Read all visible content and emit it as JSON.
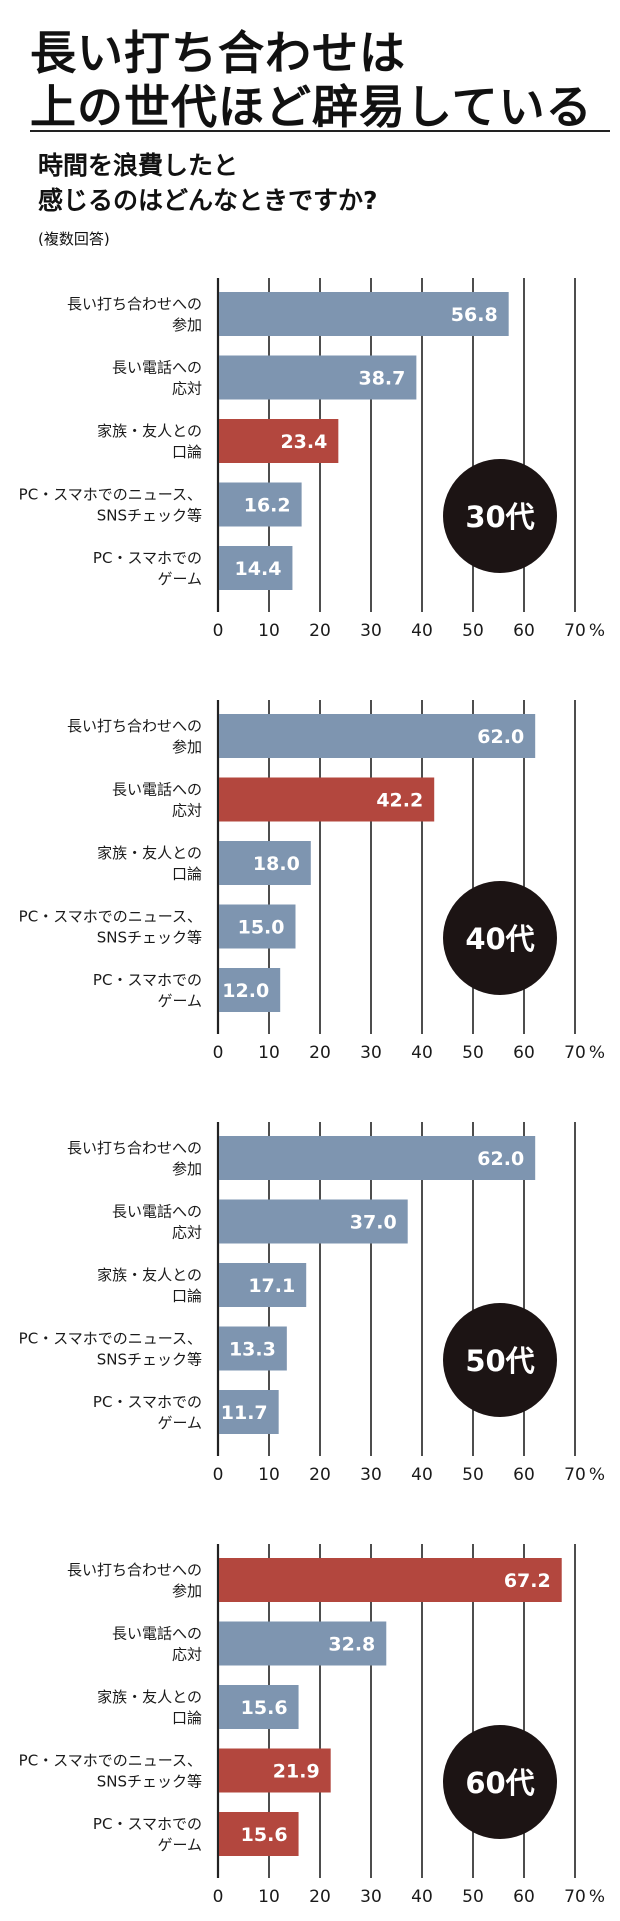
{
  "header": {
    "title_line1": "長い打ち合わせは",
    "title_line2": "上の世代ほど辟易している",
    "question_line1": "時間を浪費したと",
    "question_line2": "感じるのはどんなときですか?",
    "question_note": "(複数回答)"
  },
  "colors": {
    "bar": "#7e95b0",
    "highlight": "#b3473e",
    "badge": "#1c1414",
    "axis": "#222222"
  },
  "chart_data": [
    {
      "type": "bar",
      "orientation": "horizontal",
      "age_label": "30代",
      "categories": [
        [
          "長い打ち合わせへの",
          "参加"
        ],
        [
          "長い電話への",
          "応対"
        ],
        [
          "家族・友人との",
          "口論"
        ],
        [
          "PC・スマホでのニュース、",
          "SNSチェック等"
        ],
        [
          "PC・スマホでの",
          "ゲーム"
        ]
      ],
      "values": [
        56.8,
        38.7,
        23.4,
        16.2,
        14.4
      ],
      "value_labels": [
        "56.8",
        "38.7",
        "23.4",
        "16.2",
        "14.4"
      ],
      "highlight": [
        false,
        false,
        true,
        false,
        false
      ],
      "xlim": [
        0,
        70
      ],
      "xticks": [
        0,
        10,
        20,
        30,
        40,
        50,
        60,
        70
      ],
      "unit": "%",
      "grid": true
    },
    {
      "type": "bar",
      "orientation": "horizontal",
      "age_label": "40代",
      "categories": [
        [
          "長い打ち合わせへの",
          "参加"
        ],
        [
          "長い電話への",
          "応対"
        ],
        [
          "家族・友人との",
          "口論"
        ],
        [
          "PC・スマホでのニュース、",
          "SNSチェック等"
        ],
        [
          "PC・スマホでの",
          "ゲーム"
        ]
      ],
      "values": [
        62.0,
        42.2,
        18.0,
        15.0,
        12.0
      ],
      "value_labels": [
        "62.0",
        "42.2",
        "18.0",
        "15.0",
        "12.0"
      ],
      "highlight": [
        false,
        true,
        false,
        false,
        false
      ],
      "xlim": [
        0,
        70
      ],
      "xticks": [
        0,
        10,
        20,
        30,
        40,
        50,
        60,
        70
      ],
      "unit": "%",
      "grid": true
    },
    {
      "type": "bar",
      "orientation": "horizontal",
      "age_label": "50代",
      "categories": [
        [
          "長い打ち合わせへの",
          "参加"
        ],
        [
          "長い電話への",
          "応対"
        ],
        [
          "家族・友人との",
          "口論"
        ],
        [
          "PC・スマホでのニュース、",
          "SNSチェック等"
        ],
        [
          "PC・スマホでの",
          "ゲーム"
        ]
      ],
      "values": [
        62.0,
        37.0,
        17.1,
        13.3,
        11.7
      ],
      "value_labels": [
        "62.0",
        "37.0",
        "17.1",
        "13.3",
        "11.7"
      ],
      "highlight": [
        false,
        false,
        false,
        false,
        false
      ],
      "xlim": [
        0,
        70
      ],
      "xticks": [
        0,
        10,
        20,
        30,
        40,
        50,
        60,
        70
      ],
      "unit": "%",
      "grid": true
    },
    {
      "type": "bar",
      "orientation": "horizontal",
      "age_label": "60代",
      "categories": [
        [
          "長い打ち合わせへの",
          "参加"
        ],
        [
          "長い電話への",
          "応対"
        ],
        [
          "家族・友人との",
          "口論"
        ],
        [
          "PC・スマホでのニュース、",
          "SNSチェック等"
        ],
        [
          "PC・スマホでの",
          "ゲーム"
        ]
      ],
      "values": [
        67.2,
        32.8,
        15.6,
        21.9,
        15.6
      ],
      "value_labels": [
        "67.2",
        "32.8",
        "15.6",
        "21.9",
        "15.6"
      ],
      "highlight": [
        true,
        false,
        false,
        true,
        true
      ],
      "xlim": [
        0,
        70
      ],
      "xticks": [
        0,
        10,
        20,
        30,
        40,
        50,
        60,
        70
      ],
      "unit": "%",
      "grid": true
    }
  ]
}
